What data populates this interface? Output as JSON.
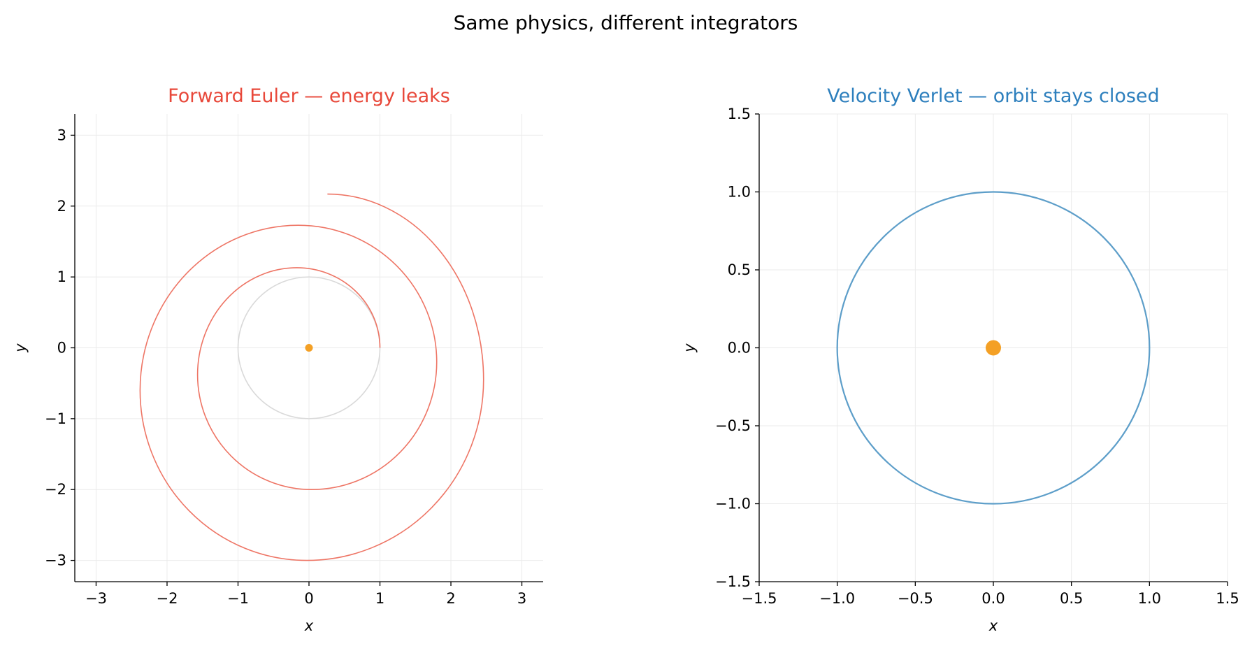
{
  "figure": {
    "suptitle": "Same physics, different integrators"
  },
  "chart_data": [
    {
      "type": "line",
      "title": "Forward Euler — energy leaks",
      "title_color": "#e8483a",
      "xlabel": "x",
      "ylabel": "y",
      "xlim": [
        -3.3,
        3.3
      ],
      "ylim": [
        -3.3,
        3.3
      ],
      "xticks": [
        -3,
        -2,
        -1,
        0,
        1,
        2,
        3
      ],
      "yticks": [
        -3,
        -2,
        -1,
        0,
        1,
        2,
        3
      ],
      "xtick_labels": [
        "−3",
        "−2",
        "−1",
        "0",
        "1",
        "2",
        "3"
      ],
      "ytick_labels": [
        "−3",
        "−2",
        "−1",
        "0",
        "1",
        "2",
        "3"
      ],
      "grid": true,
      "series": [
        {
          "role": "reference circle",
          "color": "#d9d9d9",
          "shape": "circle",
          "center": [
            0,
            0
          ],
          "radius": 1.0
        },
        {
          "role": "spiral trajectory",
          "color": "#ee7565",
          "shape": "spiral",
          "start": [
            1.0,
            0.0
          ],
          "end": [
            0.26,
            2.17
          ],
          "extremes": [
            {
              "x": -0.17,
              "y": 1.13
            },
            {
              "x": -1.57,
              "y": -0.38
            },
            {
              "x": 0.04,
              "y": -2.0
            },
            {
              "x": 1.8,
              "y": -0.2
            },
            {
              "x": -0.15,
              "y": 1.73
            },
            {
              "x": -2.38,
              "y": -0.6
            },
            {
              "x": -0.03,
              "y": -3.0
            },
            {
              "x": 2.46,
              "y": -0.45
            }
          ]
        }
      ],
      "markers": [
        {
          "role": "central mass",
          "x": 0,
          "y": 0,
          "color": "#f4a025",
          "size": "small"
        }
      ]
    },
    {
      "type": "line",
      "title": "Velocity Verlet — orbit stays closed",
      "title_color": "#2d7fbd",
      "xlabel": "x",
      "ylabel": "y",
      "xlim": [
        -1.5,
        1.5
      ],
      "ylim": [
        -1.5,
        1.5
      ],
      "xticks": [
        -1.5,
        -1.0,
        -0.5,
        0.0,
        0.5,
        1.0,
        1.5
      ],
      "yticks": [
        -1.5,
        -1.0,
        -0.5,
        0.0,
        0.5,
        1.0,
        1.5
      ],
      "xtick_labels": [
        "−1.5",
        "−1.0",
        "−0.5",
        "0.0",
        "0.5",
        "1.0",
        "1.5"
      ],
      "ytick_labels": [
        "−1.5",
        "−1.0",
        "−0.5",
        "0.0",
        "0.5",
        "1.0",
        "1.5"
      ],
      "grid": true,
      "series": [
        {
          "role": "closed orbit",
          "color": "#5d9ec9",
          "shape": "circle",
          "center": [
            0,
            0
          ],
          "radius": 1.0
        }
      ],
      "markers": [
        {
          "role": "central mass",
          "x": 0,
          "y": 0,
          "color": "#f4a025",
          "size": "large"
        }
      ]
    }
  ]
}
